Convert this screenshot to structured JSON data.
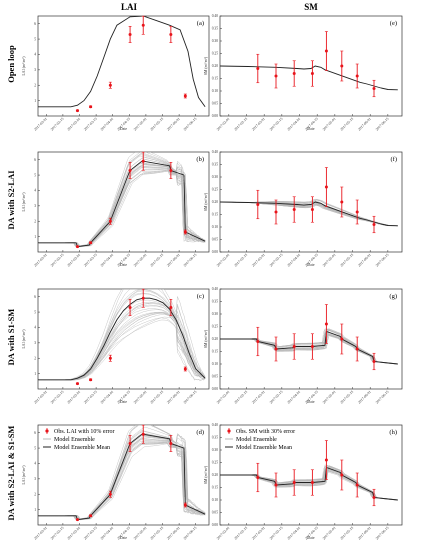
{
  "headers": {
    "left": "LAI",
    "right": "SM"
  },
  "row_labels": [
    "Open loop",
    "DA with S2-LAI",
    "DA with S1-SM",
    "DA with S2-LAI & S1-SM"
  ],
  "legend_lai": [
    "Obs. LAI with 10% error",
    "Model Ensemble",
    "Model Ensemble Mean"
  ],
  "legend_sm": [
    "Obs. SM with 30% error",
    "Model Ensemble",
    "Model Ensemble Mean"
  ],
  "colors": {
    "obs": "#e8141b",
    "mean": "#222222",
    "ensemble": "#b8b8b8"
  },
  "chart_data": [
    {
      "id": "a",
      "panel_label": "(a)",
      "type": "line",
      "variable": "LAI",
      "xlabel": "Date",
      "ylabel": "LAI (m²/m²)",
      "x_ticks": [
        "2017-02-01",
        "2017-02-15",
        "2017-03-01",
        "2017-03-15",
        "2017-04-01",
        "2017-04-15",
        "2017-05-01",
        "2017-05-15",
        "2017-06-01",
        "2017-06-15"
      ],
      "ylim": [
        0,
        6.5
      ],
      "y_ticks": [
        1,
        2,
        3,
        4,
        5,
        6
      ],
      "ensemble": false,
      "mean": {
        "x": [
          0,
          10,
          20,
          25,
          30,
          35,
          40,
          45,
          50,
          55,
          60,
          70,
          80,
          90,
          100,
          108,
          114,
          118,
          122,
          127
        ],
        "y": [
          0.6,
          0.6,
          0.6,
          0.6,
          0.7,
          1.0,
          1.6,
          2.6,
          3.8,
          5.0,
          5.9,
          6.45,
          6.5,
          6.2,
          5.9,
          5.6,
          4.2,
          2.4,
          1.2,
          0.6
        ]
      },
      "obs": [
        {
          "x": 30,
          "y": 0.35,
          "err": 0.04
        },
        {
          "x": 40,
          "y": 0.6,
          "err": 0.06
        },
        {
          "x": 55,
          "y": 2.0,
          "err": 0.2
        },
        {
          "x": 70,
          "y": 5.3,
          "err": 0.53
        },
        {
          "x": 80,
          "y": 5.9,
          "err": 0.59
        },
        {
          "x": 101,
          "y": 5.3,
          "err": 0.53
        },
        {
          "x": 112,
          "y": 1.3,
          "err": 0.13
        }
      ]
    },
    {
      "id": "b",
      "panel_label": "(b)",
      "type": "line",
      "variable": "LAI",
      "xlabel": "Date",
      "ylabel": "LAI (m²/m²)",
      "x_ticks": [
        "2017-02-01",
        "2017-02-15",
        "2017-03-01",
        "2017-03-15",
        "2017-04-01",
        "2017-04-15",
        "2017-05-01",
        "2017-05-15",
        "2017-06-01",
        "2017-06-15"
      ],
      "ylim": [
        0,
        6.5
      ],
      "y_ticks": [
        1,
        2,
        3,
        4,
        5,
        6
      ],
      "ensemble": true,
      "spread": 1.0,
      "mean": {
        "x": [
          0,
          29,
          30,
          39,
          40,
          54,
          55,
          69,
          70,
          79,
          80,
          100,
          101,
          111,
          112,
          127
        ],
        "y": [
          0.6,
          0.6,
          0.35,
          0.45,
          0.6,
          1.9,
          2.0,
          5.1,
          5.3,
          5.9,
          5.9,
          5.6,
          5.3,
          5.0,
          1.3,
          0.7
        ]
      },
      "obs": [
        {
          "x": 30,
          "y": 0.35,
          "err": 0.04
        },
        {
          "x": 40,
          "y": 0.6,
          "err": 0.06
        },
        {
          "x": 55,
          "y": 2.0,
          "err": 0.2
        },
        {
          "x": 70,
          "y": 5.3,
          "err": 0.53
        },
        {
          "x": 80,
          "y": 5.9,
          "err": 0.59
        },
        {
          "x": 101,
          "y": 5.3,
          "err": 0.53
        },
        {
          "x": 112,
          "y": 1.3,
          "err": 0.13
        }
      ]
    },
    {
      "id": "c",
      "panel_label": "(c)",
      "type": "line",
      "variable": "LAI",
      "xlabel": "Date",
      "ylabel": "LAI (m²/m²)",
      "x_ticks": [
        "2017-02-01",
        "2017-02-15",
        "2017-03-01",
        "2017-03-15",
        "2017-04-01",
        "2017-04-15",
        "2017-05-01",
        "2017-05-15",
        "2017-06-01",
        "2017-06-15"
      ],
      "ylim": [
        0,
        6.5
      ],
      "y_ticks": [
        1,
        2,
        3,
        4,
        5,
        6
      ],
      "ensemble": true,
      "spread": 2.2,
      "mean": {
        "x": [
          0,
          25,
          30,
          35,
          40,
          45,
          50,
          55,
          60,
          65,
          70,
          75,
          80,
          85,
          90,
          95,
          100,
          105,
          110,
          115,
          120,
          127
        ],
        "y": [
          0.6,
          0.6,
          0.7,
          0.9,
          1.3,
          2.0,
          2.8,
          3.7,
          4.5,
          5.1,
          5.5,
          5.8,
          5.9,
          5.9,
          5.8,
          5.6,
          5.2,
          4.5,
          3.5,
          2.3,
          1.3,
          0.7
        ]
      },
      "obs": [
        {
          "x": 30,
          "y": 0.35,
          "err": 0.04
        },
        {
          "x": 40,
          "y": 0.6,
          "err": 0.06
        },
        {
          "x": 55,
          "y": 2.0,
          "err": 0.2
        },
        {
          "x": 70,
          "y": 5.3,
          "err": 0.53
        },
        {
          "x": 80,
          "y": 5.9,
          "err": 0.59
        },
        {
          "x": 101,
          "y": 5.3,
          "err": 0.53
        },
        {
          "x": 112,
          "y": 1.3,
          "err": 0.13
        }
      ]
    },
    {
      "id": "d",
      "panel_label": "(d)",
      "type": "line",
      "variable": "LAI",
      "xlabel": "Date",
      "ylabel": "LAI (m²/m²)",
      "x_ticks": [
        "2017-02-01",
        "2017-02-15",
        "2017-03-01",
        "2017-03-15",
        "2017-04-01",
        "2017-04-15",
        "2017-05-01",
        "2017-05-15",
        "2017-06-01",
        "2017-06-15"
      ],
      "ylim": [
        0,
        6.5
      ],
      "y_ticks": [
        1,
        2,
        3,
        4,
        5,
        6
      ],
      "ensemble": true,
      "spread": 1.0,
      "legend": "lai",
      "mean": {
        "x": [
          0,
          29,
          30,
          39,
          40,
          54,
          55,
          69,
          70,
          79,
          80,
          100,
          101,
          111,
          112,
          127
        ],
        "y": [
          0.6,
          0.6,
          0.35,
          0.45,
          0.6,
          1.9,
          2.0,
          5.1,
          5.3,
          5.9,
          5.9,
          5.6,
          5.3,
          5.0,
          1.3,
          0.7
        ]
      },
      "obs": [
        {
          "x": 30,
          "y": 0.35,
          "err": 0.04
        },
        {
          "x": 40,
          "y": 0.6,
          "err": 0.06
        },
        {
          "x": 55,
          "y": 2.0,
          "err": 0.2
        },
        {
          "x": 70,
          "y": 5.3,
          "err": 0.53
        },
        {
          "x": 80,
          "y": 5.9,
          "err": 0.59
        },
        {
          "x": 101,
          "y": 5.3,
          "err": 0.53
        },
        {
          "x": 112,
          "y": 1.3,
          "err": 0.13
        }
      ]
    },
    {
      "id": "e",
      "panel_label": "(e)",
      "type": "line",
      "variable": "SM",
      "xlabel": "Date",
      "ylabel": "SM (m³/m³)",
      "x_ticks": [
        "2017-02-01",
        "2017-02-15",
        "2017-03-01",
        "2017-03-15",
        "2017-04-01",
        "2017-04-15",
        "2017-05-01",
        "2017-05-15",
        "2017-06-01",
        "2017-06-15"
      ],
      "ylim": [
        0,
        0.4
      ],
      "y_ticks": [
        "0.00",
        "0.05",
        "0.10",
        "0.15",
        "0.20",
        "0.25",
        "0.30",
        "0.35",
        "0.40"
      ],
      "ensemble": false,
      "mean": {
        "x": [
          0,
          20,
          40,
          55,
          60,
          65,
          68,
          72,
          75,
          80,
          85,
          90,
          95,
          100,
          105,
          110,
          115,
          120,
          127
        ],
        "y": [
          0.2,
          0.198,
          0.195,
          0.19,
          0.188,
          0.19,
          0.2,
          0.195,
          0.185,
          0.175,
          0.165,
          0.155,
          0.145,
          0.135,
          0.128,
          0.12,
          0.112,
          0.106,
          0.105
        ]
      },
      "obs": [
        {
          "x": 27,
          "y": 0.19,
          "err": 0.057
        },
        {
          "x": 40,
          "y": 0.16,
          "err": 0.048
        },
        {
          "x": 53,
          "y": 0.17,
          "err": 0.051
        },
        {
          "x": 66,
          "y": 0.17,
          "err": 0.051
        },
        {
          "x": 76,
          "y": 0.26,
          "err": 0.078
        },
        {
          "x": 87,
          "y": 0.2,
          "err": 0.06
        },
        {
          "x": 98,
          "y": 0.16,
          "err": 0.048
        },
        {
          "x": 110,
          "y": 0.11,
          "err": 0.033
        }
      ]
    },
    {
      "id": "f",
      "panel_label": "(f)",
      "type": "line",
      "variable": "SM",
      "xlabel": "Date",
      "ylabel": "SM (m³/m³)",
      "x_ticks": [
        "2017-02-01",
        "2017-02-15",
        "2017-03-01",
        "2017-03-15",
        "2017-04-01",
        "2017-04-15",
        "2017-05-01",
        "2017-05-15",
        "2017-06-01",
        "2017-06-15"
      ],
      "ylim": [
        0,
        0.4
      ],
      "y_ticks": [
        "0.00",
        "0.05",
        "0.10",
        "0.15",
        "0.20",
        "0.25",
        "0.30",
        "0.35",
        "0.40"
      ],
      "ensemble": true,
      "spread": 0.012,
      "mean": {
        "x": [
          0,
          20,
          40,
          55,
          60,
          65,
          68,
          72,
          75,
          80,
          85,
          90,
          95,
          100,
          105,
          110,
          115,
          120,
          127
        ],
        "y": [
          0.2,
          0.198,
          0.195,
          0.19,
          0.188,
          0.19,
          0.2,
          0.195,
          0.185,
          0.175,
          0.165,
          0.155,
          0.145,
          0.135,
          0.128,
          0.12,
          0.112,
          0.106,
          0.105
        ]
      },
      "obs": [
        {
          "x": 27,
          "y": 0.19,
          "err": 0.057
        },
        {
          "x": 40,
          "y": 0.16,
          "err": 0.048
        },
        {
          "x": 53,
          "y": 0.17,
          "err": 0.051
        },
        {
          "x": 66,
          "y": 0.17,
          "err": 0.051
        },
        {
          "x": 76,
          "y": 0.26,
          "err": 0.078
        },
        {
          "x": 87,
          "y": 0.2,
          "err": 0.06
        },
        {
          "x": 98,
          "y": 0.16,
          "err": 0.048
        },
        {
          "x": 110,
          "y": 0.11,
          "err": 0.033
        }
      ]
    },
    {
      "id": "g",
      "panel_label": "(g)",
      "type": "line",
      "variable": "SM",
      "xlabel": "Date",
      "ylabel": "SM (m³/m³)",
      "x_ticks": [
        "2017-02-01",
        "2017-02-15",
        "2017-03-01",
        "2017-03-15",
        "2017-04-01",
        "2017-04-15",
        "2017-05-01",
        "2017-05-15",
        "2017-06-01",
        "2017-06-15"
      ],
      "ylim": [
        0,
        0.4
      ],
      "y_ticks": [
        "0.00",
        "0.05",
        "0.10",
        "0.15",
        "0.20",
        "0.25",
        "0.30",
        "0.35",
        "0.40"
      ],
      "ensemble": true,
      "spread": 0.015,
      "mean": {
        "x": [
          0,
          26,
          27,
          39,
          40,
          52,
          53,
          65,
          66,
          75,
          76,
          86,
          87,
          97,
          98,
          109,
          110,
          127
        ],
        "y": [
          0.2,
          0.2,
          0.19,
          0.175,
          0.16,
          0.165,
          0.17,
          0.17,
          0.17,
          0.175,
          0.23,
          0.21,
          0.2,
          0.17,
          0.16,
          0.13,
          0.11,
          0.1
        ]
      },
      "obs": [
        {
          "x": 27,
          "y": 0.19,
          "err": 0.057
        },
        {
          "x": 40,
          "y": 0.16,
          "err": 0.048
        },
        {
          "x": 53,
          "y": 0.17,
          "err": 0.051
        },
        {
          "x": 66,
          "y": 0.17,
          "err": 0.051
        },
        {
          "x": 76,
          "y": 0.26,
          "err": 0.078
        },
        {
          "x": 87,
          "y": 0.2,
          "err": 0.06
        },
        {
          "x": 98,
          "y": 0.16,
          "err": 0.048
        },
        {
          "x": 110,
          "y": 0.11,
          "err": 0.033
        }
      ]
    },
    {
      "id": "h",
      "panel_label": "(h)",
      "type": "line",
      "variable": "SM",
      "xlabel": "Date",
      "ylabel": "SM (m³/m³)",
      "x_ticks": [
        "2017-02-01",
        "2017-02-15",
        "2017-03-01",
        "2017-03-15",
        "2017-04-01",
        "2017-04-15",
        "2017-05-01",
        "2017-05-15",
        "2017-06-01",
        "2017-06-15"
      ],
      "ylim": [
        0,
        0.4
      ],
      "y_ticks": [
        "0.00",
        "0.05",
        "0.10",
        "0.15",
        "0.20",
        "0.25",
        "0.30",
        "0.35",
        "0.40"
      ],
      "ensemble": true,
      "spread": 0.015,
      "legend": "sm",
      "mean": {
        "x": [
          0,
          26,
          27,
          39,
          40,
          52,
          53,
          65,
          66,
          75,
          76,
          86,
          87,
          97,
          98,
          109,
          110,
          127
        ],
        "y": [
          0.2,
          0.2,
          0.19,
          0.175,
          0.16,
          0.165,
          0.17,
          0.17,
          0.17,
          0.175,
          0.23,
          0.21,
          0.2,
          0.17,
          0.16,
          0.13,
          0.11,
          0.1
        ]
      },
      "obs": [
        {
          "x": 27,
          "y": 0.19,
          "err": 0.057
        },
        {
          "x": 40,
          "y": 0.16,
          "err": 0.048
        },
        {
          "x": 53,
          "y": 0.17,
          "err": 0.051
        },
        {
          "x": 66,
          "y": 0.17,
          "err": 0.051
        },
        {
          "x": 76,
          "y": 0.26,
          "err": 0.078
        },
        {
          "x": 87,
          "y": 0.2,
          "err": 0.06
        },
        {
          "x": 98,
          "y": 0.16,
          "err": 0.048
        },
        {
          "x": 110,
          "y": 0.11,
          "err": 0.033
        }
      ]
    }
  ]
}
